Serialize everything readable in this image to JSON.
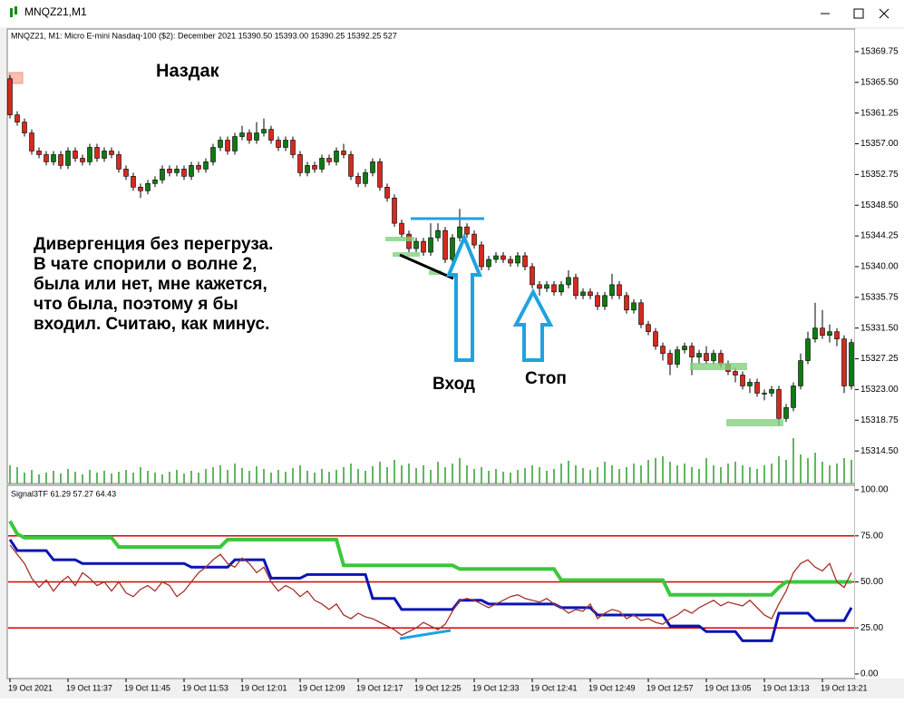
{
  "window": {
    "title": "MNQZ21,M1"
  },
  "chart_data": [
    {
      "type": "candlestick",
      "title": "MNQZ21, M1:  Micro E-mini Nasdaq-100 ($2): December 2021  15390.50 15393.00 15390.25 15392.25  527",
      "categories": [
        "19 Oct 2021",
        null,
        null,
        null,
        null,
        null,
        null,
        null,
        "19 Oct 11:37",
        null,
        null,
        null,
        null,
        null,
        null,
        null,
        "19 Oct 11:45",
        null,
        null,
        null,
        null,
        null,
        null,
        null,
        "19 Oct 11:53",
        null,
        null,
        null,
        null,
        null,
        null,
        null,
        "19 Oct 12:01",
        null,
        null,
        null,
        null,
        null,
        null,
        null,
        "19 Oct 12:09",
        null,
        null,
        null,
        null,
        null,
        null,
        null,
        "19 Oct 12:17",
        null,
        null,
        null,
        null,
        null,
        null,
        null,
        "19 Oct 12:25",
        null,
        null,
        null,
        null,
        null,
        null,
        null,
        "19 Oct 12:33",
        null,
        null,
        null,
        null,
        null,
        null,
        null,
        "19 Oct 12:41",
        null,
        null,
        null,
        null,
        null,
        null,
        null,
        "19 Oct 12:49",
        null,
        null,
        null,
        null,
        null,
        null,
        null,
        "19 Oct 12:57",
        null,
        null,
        null,
        null,
        null,
        null,
        null,
        "19 Oct 13:05",
        null,
        null,
        null,
        null,
        null,
        null,
        null,
        "19 Oct 13:13",
        null,
        null,
        null,
        null,
        null,
        null,
        null,
        "19 Oct 13:21",
        null,
        null,
        null,
        null
      ],
      "open": [
        15366,
        15361,
        15360,
        15358.5,
        15356,
        15355.5,
        15354.5,
        15355.5,
        15354,
        15356,
        15355,
        15354.5,
        15356.5,
        15355,
        15356,
        15355.5,
        15353.5,
        15352.5,
        15351,
        15350.5,
        15351.5,
        15352,
        15353.5,
        15353,
        15353.5,
        15352.5,
        15354,
        15353.5,
        15354.5,
        15356.5,
        15357.5,
        15356,
        15358,
        15358.5,
        15357.5,
        15358.5,
        15359,
        15357.5,
        15356.5,
        15357.5,
        15355.5,
        15353,
        15354,
        15353.5,
        15355,
        15354.5,
        15356,
        15355.5,
        15352.5,
        15351.5,
        15353,
        15354.5,
        15351,
        15349.5,
        15346,
        15344.5,
        15342.5,
        15343.5,
        15342,
        15344,
        15345,
        15341,
        15344,
        15345.5,
        15344.5,
        15343,
        15340,
        15341,
        15341.5,
        15341,
        15340.5,
        15341.5,
        15340,
        15337.5,
        15337,
        15337.5,
        15336.5,
        15337.5,
        15338.5,
        15336,
        15336.5,
        15336,
        15334.5,
        15336,
        15337.5,
        15336,
        15334,
        15335,
        15332,
        15331,
        15329,
        15328,
        15326.5,
        15328.5,
        15329,
        15327.5,
        15328,
        15327,
        15328,
        15326.5,
        15325.5,
        15325,
        15323.5,
        15324,
        15322.5,
        15322.5,
        15323,
        15319,
        15320.5,
        15323.5,
        15327,
        15330,
        15331.5,
        15330.5,
        15331,
        15330,
        15323.5
      ],
      "high": [
        15366.5,
        15361.5,
        15360.5,
        15359,
        15356.5,
        15356,
        15356,
        15356,
        15356.5,
        15356.5,
        15355.5,
        15357,
        15357,
        15356.5,
        15356.5,
        15356,
        15354,
        15353,
        15351.5,
        15352,
        15352.5,
        15354,
        15354,
        15354,
        15354,
        15354.5,
        15354.5,
        15355,
        15357,
        15358,
        15358,
        15358.5,
        15359.5,
        15359,
        15360,
        15360.5,
        15359.5,
        15358,
        15358,
        15358,
        15356,
        15354.5,
        15354.5,
        15355.5,
        15355.5,
        15356.5,
        15357,
        15356,
        15353,
        15353.5,
        15355,
        15355,
        15351.5,
        15350,
        15346.5,
        15345,
        15344,
        15344,
        15346,
        15346,
        15345.5,
        15344.5,
        15348,
        15346,
        15345,
        15343.5,
        15341.5,
        15342,
        15342,
        15341.5,
        15342,
        15342,
        15340.5,
        15338,
        15338,
        15338,
        15338,
        15339.5,
        15339,
        15337,
        15337,
        15336.5,
        15336.5,
        15339,
        15338,
        15336.5,
        15335.5,
        15335.5,
        15332.5,
        15331.5,
        15329.5,
        15328.5,
        15329,
        15329.5,
        15329.5,
        15328.5,
        15329,
        15328.5,
        15328.5,
        15327,
        15326,
        15325.5,
        15324.5,
        15324.5,
        15323,
        15323.5,
        15323.5,
        15321,
        15324,
        15328,
        15331,
        15335,
        15334,
        15332,
        15331.5,
        15330.5,
        15330
      ],
      "low": [
        15360.5,
        15359.5,
        15358,
        15355.5,
        15355,
        15354,
        15354,
        15353.5,
        15353.5,
        15354.5,
        15354,
        15354,
        15354.5,
        15354.5,
        15355,
        15353,
        15352,
        15350.5,
        15349.5,
        15350,
        15351,
        15351.5,
        15352.5,
        15352.5,
        15352,
        15352,
        15353,
        15353,
        15354,
        15356,
        15355.5,
        15355.5,
        15357.5,
        15357,
        15357,
        15358,
        15357,
        15356,
        15356,
        15355,
        15352.5,
        15352.5,
        15353,
        15353,
        15354,
        15354,
        15355,
        15352,
        15351,
        15351,
        15352.5,
        15350.5,
        15349,
        15345.5,
        15344,
        15342,
        15342,
        15341.5,
        15341.5,
        15343.5,
        15340.5,
        15340.5,
        15343.5,
        15344,
        15342.5,
        15339.5,
        15339.5,
        15340.5,
        15340.5,
        15340,
        15340,
        15339.5,
        15337,
        15336,
        15336.5,
        15336,
        15336,
        15337,
        15335.5,
        15335.5,
        15335.5,
        15334,
        15334,
        15335.5,
        15335.5,
        15333.5,
        15333.5,
        15331.5,
        15330.5,
        15328.5,
        15327,
        15325,
        15326,
        15328,
        15325,
        15326.5,
        15326.5,
        15326.5,
        15326,
        15325,
        15324,
        15323,
        15322.5,
        15322,
        15321.5,
        15322,
        15318,
        15318.5,
        15320,
        15323,
        15326.5,
        15329.5,
        15330,
        15329.5,
        15329,
        15322.5,
        15323
      ],
      "close": [
        15361,
        15360,
        15358.5,
        15356,
        15355.5,
        15354.5,
        15355.5,
        15354,
        15356,
        15355,
        15354.5,
        15356.5,
        15355,
        15356,
        15355.5,
        15353.5,
        15352.5,
        15351,
        15350.5,
        15351.5,
        15352,
        15353.5,
        15353,
        15353.5,
        15352.5,
        15354,
        15353.5,
        15354.5,
        15356.5,
        15357.5,
        15356,
        15358,
        15358.5,
        15357.5,
        15358.5,
        15359,
        15357.5,
        15356.5,
        15357.5,
        15355.5,
        15353,
        15354,
        15353.5,
        15355,
        15354.5,
        15356,
        15355.5,
        15352.5,
        15351.5,
        15353,
        15354.5,
        15351,
        15349.5,
        15346,
        15344.5,
        15342.5,
        15343.5,
        15342,
        15344,
        15345,
        15341,
        15344,
        15345.5,
        15344.5,
        15343,
        15340,
        15341,
        15341.5,
        15341,
        15340.5,
        15341.5,
        15340,
        15337.5,
        15337,
        15337.5,
        15336.5,
        15337.5,
        15338.5,
        15336,
        15336.5,
        15336,
        15334.5,
        15336,
        15337.5,
        15336,
        15334,
        15335,
        15332,
        15331,
        15329,
        15328,
        15326.5,
        15328.5,
        15329,
        15327.5,
        15328,
        15327,
        15328,
        15326.5,
        15325.5,
        15325,
        15323.5,
        15324,
        15322.5,
        15322.5,
        15323,
        15319,
        15320.5,
        15323.5,
        15327,
        15330,
        15331.5,
        15330.5,
        15331,
        15330,
        15323.5,
        15329.5
      ],
      "volume": [
        20,
        18,
        12,
        15,
        10,
        12,
        14,
        11,
        16,
        13,
        10,
        15,
        12,
        14,
        11,
        13,
        15,
        12,
        18,
        14,
        12,
        10,
        13,
        15,
        11,
        14,
        12,
        16,
        18,
        20,
        15,
        22,
        17,
        14,
        19,
        16,
        12,
        15,
        13,
        17,
        20,
        14,
        12,
        16,
        13,
        15,
        18,
        22,
        16,
        14,
        19,
        24,
        18,
        26,
        20,
        22,
        17,
        20,
        15,
        24,
        18,
        22,
        28,
        20,
        16,
        18,
        14,
        16,
        13,
        12,
        15,
        17,
        20,
        18,
        14,
        16,
        22,
        25,
        20,
        17,
        15,
        18,
        24,
        20,
        16,
        18,
        22,
        20,
        26,
        28,
        30,
        24,
        20,
        22,
        18,
        16,
        28,
        20,
        18,
        22,
        24,
        20,
        18,
        16,
        20,
        22,
        30,
        26,
        50,
        32,
        28,
        34,
        24,
        20,
        22,
        28,
        26
      ],
      "up_color": "#0f7a12",
      "down_color": "#d42a1f",
      "volume_color": "#2e9e2e",
      "ylim": [
        15310,
        15372.5
      ],
      "yticks": [
        15369.75,
        {
          "value": 15365.5,
          "label": "15365.50"
        },
        15361.25,
        {
          "value": 15357,
          "label": "15357.00"
        },
        15352.75,
        {
          "value": 15348.5,
          "label": "15348.50"
        },
        15344.25,
        {
          "value": 15340,
          "label": "15340.00"
        },
        15335.75,
        {
          "value": 15331.5,
          "label": "15331.50"
        },
        15327.25,
        {
          "value": 15323,
          "label": "15323.00"
        },
        15318.75,
        {
          "value": 15314.5,
          "label": "15314.50"
        }
      ],
      "annotations": {
        "heading": "Наздак",
        "comment": [
          "Дивергенция без перегруза.",
          "В чате спорили о волне 2,",
          "была или нет, мне кажется,",
          "что была, поэтому я бы",
          "входил. Считаю, как минус."
        ],
        "entry": "Вход",
        "stop": "Стоп"
      }
    },
    {
      "type": "line",
      "title": "Signal3TF 61.29 57.27 64.43",
      "series": [
        {
          "color": "#39c93a",
          "values": [
            83,
            76,
            74,
            74,
            74,
            74,
            74,
            74,
            74,
            74,
            74,
            74,
            74,
            74,
            74,
            69,
            69,
            69,
            69,
            69,
            69,
            69,
            69,
            69,
            69,
            69,
            69,
            69,
            69,
            69,
            73,
            73,
            73,
            73,
            73,
            73,
            73,
            73,
            73,
            73,
            73,
            73,
            73,
            73,
            73,
            73,
            59,
            59,
            59,
            59,
            59,
            59,
            59,
            59,
            59,
            59,
            59,
            59,
            59,
            59,
            59,
            59,
            57,
            57,
            57,
            57,
            57,
            57,
            57,
            57,
            57,
            57,
            57,
            57,
            57,
            57,
            51,
            51,
            51,
            51,
            51,
            51,
            51,
            51,
            51,
            51,
            51,
            51,
            51,
            51,
            51,
            43,
            43,
            43,
            43,
            43,
            43,
            43,
            43,
            43,
            43,
            43,
            43,
            43,
            43,
            43,
            47,
            50,
            50,
            50,
            50,
            50,
            50,
            50,
            50,
            50,
            50
          ]
        },
        {
          "color": "#0a14b4",
          "values": [
            73,
            67,
            67,
            67,
            67,
            67,
            62,
            62,
            62,
            62,
            60,
            60,
            60,
            60,
            60,
            60,
            60,
            60,
            60,
            60,
            60,
            60,
            60,
            60,
            60,
            58,
            58,
            58,
            58,
            58,
            58,
            62,
            62,
            62,
            62,
            62,
            52,
            52,
            52,
            52,
            52,
            54,
            54,
            54,
            54,
            54,
            54,
            54,
            54,
            54,
            41,
            41,
            41,
            41,
            35,
            35,
            35,
            35,
            35,
            35,
            35,
            35,
            40,
            40,
            40,
            40,
            38,
            38,
            38,
            38,
            38,
            38,
            38,
            38,
            38,
            38,
            36,
            36,
            36,
            36,
            36,
            32,
            32,
            32,
            32,
            32,
            32,
            32,
            32,
            32,
            32,
            26,
            26,
            26,
            26,
            26,
            23,
            23,
            23,
            23,
            23,
            18,
            18,
            18,
            18,
            18,
            33,
            33,
            33,
            33,
            33,
            29,
            29,
            29,
            29,
            29,
            36
          ]
        },
        {
          "color": "#a5322a",
          "values": [
            70,
            65,
            60,
            52,
            47,
            51,
            45,
            50,
            53,
            48,
            55,
            52,
            48,
            50,
            45,
            50,
            44,
            42,
            46,
            48,
            45,
            50,
            48,
            42,
            45,
            50,
            55,
            58,
            62,
            65,
            60,
            58,
            63,
            60,
            55,
            58,
            50,
            45,
            48,
            46,
            42,
            45,
            40,
            38,
            35,
            38,
            32,
            30,
            33,
            31,
            30,
            28,
            26,
            24,
            21,
            23,
            25,
            28,
            26,
            24,
            27,
            34,
            40,
            41,
            40,
            38,
            36,
            38,
            40,
            42,
            43,
            41,
            40,
            39,
            41,
            38,
            36,
            33,
            35,
            34,
            38,
            30,
            33,
            35,
            34,
            30,
            32,
            29,
            30,
            28,
            27,
            30,
            32,
            35,
            33,
            36,
            38,
            40,
            37,
            39,
            38,
            37,
            40,
            36,
            32,
            30,
            38,
            45,
            55,
            60,
            62,
            58,
            56,
            60,
            50,
            47,
            55
          ]
        }
      ],
      "levels": [
        25,
        50,
        75
      ],
      "level_color": "#d80000",
      "ylim": [
        -2.5,
        101.5
      ],
      "yticks": [
        {
          "value": 100,
          "label": "100.00"
        },
        {
          "value": 75,
          "label": "75.00"
        },
        {
          "value": 50,
          "label": "50.00"
        },
        {
          "value": 25,
          "label": "25.00"
        },
        {
          "value": 0,
          "label": "0.00"
        }
      ]
    }
  ]
}
